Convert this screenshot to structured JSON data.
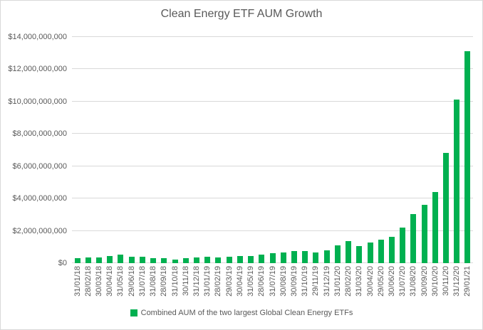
{
  "chart_data": {
    "type": "bar",
    "title": "Clean Energy ETF AUM Growth",
    "legend": "Combined AUM of the two largest Global Clean Energy ETFs",
    "legend_position": "bottom",
    "grid": "horizontal",
    "xlabel": "",
    "ylabel": "",
    "ylim": [
      0,
      14000000000
    ],
    "y_ticks": [
      {
        "label": "$0",
        "value": 0
      },
      {
        "label": "$2,000,000,000",
        "value": 2000000000
      },
      {
        "label": "$4,000,000,000",
        "value": 4000000000
      },
      {
        "label": "$6,000,000,000",
        "value": 6000000000
      },
      {
        "label": "$8,000,000,000",
        "value": 8000000000
      },
      {
        "label": "$10,000,000,000",
        "value": 10000000000
      },
      {
        "label": "$12,000,000,000",
        "value": 12000000000
      },
      {
        "label": "$14,000,000,000",
        "value": 14000000000
      }
    ],
    "categories": [
      "31/01/18",
      "28/02/18",
      "30/03/18",
      "30/04/18",
      "31/05/18",
      "29/06/18",
      "31/07/18",
      "31/08/18",
      "28/09/18",
      "31/10/18",
      "30/11/18",
      "31/12/18",
      "31/01/19",
      "28/02/19",
      "29/03/19",
      "30/04/19",
      "31/05/19",
      "28/06/19",
      "31/07/19",
      "30/08/19",
      "30/09/19",
      "31/10/19",
      "29/11/19",
      "31/12/19",
      "31/01/20",
      "28/02/20",
      "31/03/20",
      "30/04/20",
      "29/05/20",
      "30/06/20",
      "31/07/20",
      "31/08/20",
      "30/09/20",
      "30/10/20",
      "30/11/20",
      "31/12/20",
      "29/01/21"
    ],
    "values": [
      330000000,
      350000000,
      340000000,
      430000000,
      530000000,
      400000000,
      400000000,
      330000000,
      330000000,
      240000000,
      320000000,
      340000000,
      390000000,
      360000000,
      390000000,
      430000000,
      430000000,
      540000000,
      610000000,
      640000000,
      760000000,
      750000000,
      670000000,
      810000000,
      1100000000,
      1350000000,
      1050000000,
      1270000000,
      1470000000,
      1620000000,
      2210000000,
      3060000000,
      3630000000,
      4420000000,
      6810000000,
      10110000000,
      13140000000
    ]
  },
  "colors": {
    "bar": "#00B050",
    "gridline": "#D9D9D9",
    "axis_line": "#D9D9D9",
    "text": "#595959",
    "border": "#D9D9D9",
    "background": "#FFFFFF"
  }
}
